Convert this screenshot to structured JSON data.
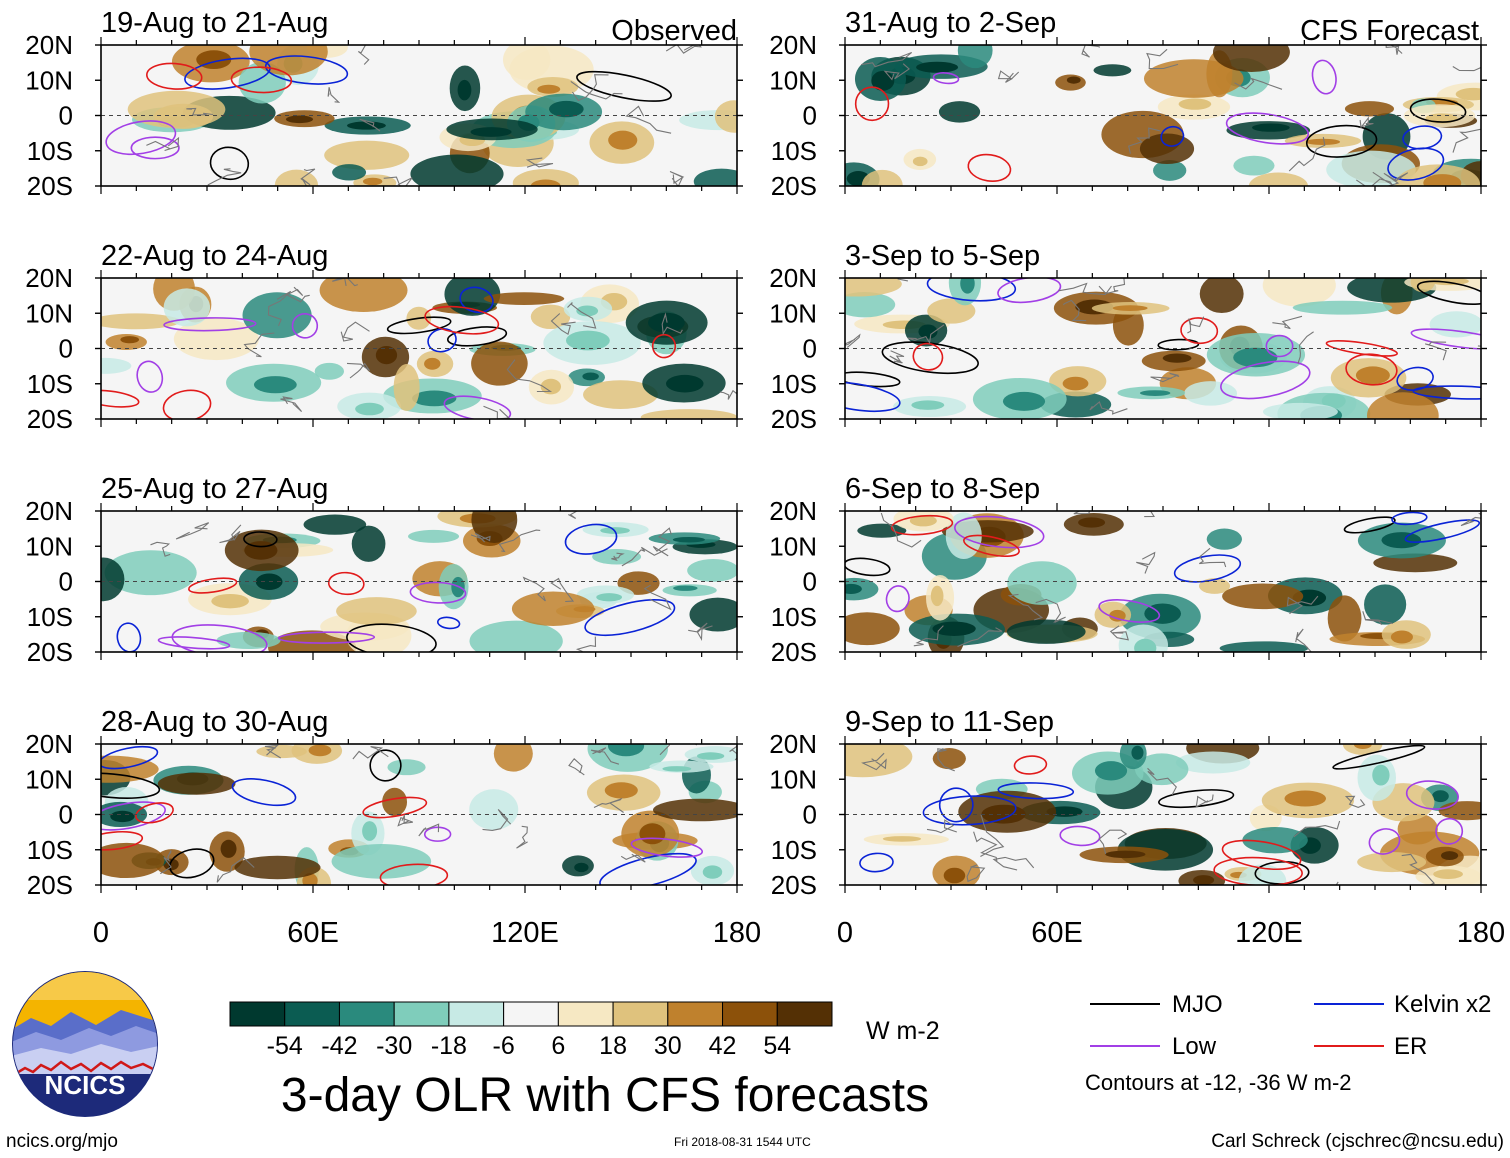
{
  "page": {
    "title": "3-day OLR with CFS forecasts",
    "site": "ncics.org/mjo",
    "timestamp": "Fri 2018-08-31 1544 UTC",
    "credit": "Carl Schreck (cjschrec@ncsu.edu)",
    "logo_text": "NCICS",
    "contour_note": "Contours at -12, -36 W m-2",
    "units": "W m-2"
  },
  "chart_data": [
    {
      "type": "heatmap",
      "columns": [
        {
          "header": "Observed",
          "panels": [
            {
              "title": "19-Aug to 21-Aug"
            },
            {
              "title": "22-Aug to 24-Aug"
            },
            {
              "title": "25-Aug to 27-Aug"
            },
            {
              "title": "28-Aug to 30-Aug"
            }
          ]
        },
        {
          "header": "CFS Forecast",
          "panels": [
            {
              "title": "31-Aug to 2-Sep"
            },
            {
              "title": "3-Sep to 5-Sep"
            },
            {
              "title": "6-Sep to 8-Sep"
            },
            {
              "title": "9-Sep to 11-Sep"
            }
          ]
        }
      ],
      "y_ticks": [
        "20N",
        "10N",
        "0",
        "10S",
        "20S"
      ],
      "x_ticks": [
        "0",
        "60E",
        "120E",
        "180"
      ],
      "ylim": [
        -20,
        20
      ],
      "xlim": [
        0,
        180
      ],
      "colorbar": {
        "labels": [
          "-54",
          "-42",
          "-30",
          "-18",
          "-6",
          "6",
          "18",
          "30",
          "42",
          "54"
        ],
        "colors": [
          "#00392f",
          "#0b5c52",
          "#2a8a7d",
          "#7fcdbb",
          "#c7eae5",
          "#f5f5f5",
          "#f6e8c3",
          "#dfc27d",
          "#bf812d",
          "#8c510a",
          "#543005"
        ],
        "units": "W m-2"
      },
      "legend": [
        {
          "label": "MJO",
          "color": "#000000"
        },
        {
          "label": "Kelvin x2",
          "color": "#0a23d6"
        },
        {
          "label": "Low",
          "color": "#a23fe6"
        },
        {
          "label": "ER",
          "color": "#e11b1b"
        }
      ],
      "contour_levels": [
        -12,
        -36
      ]
    }
  ]
}
